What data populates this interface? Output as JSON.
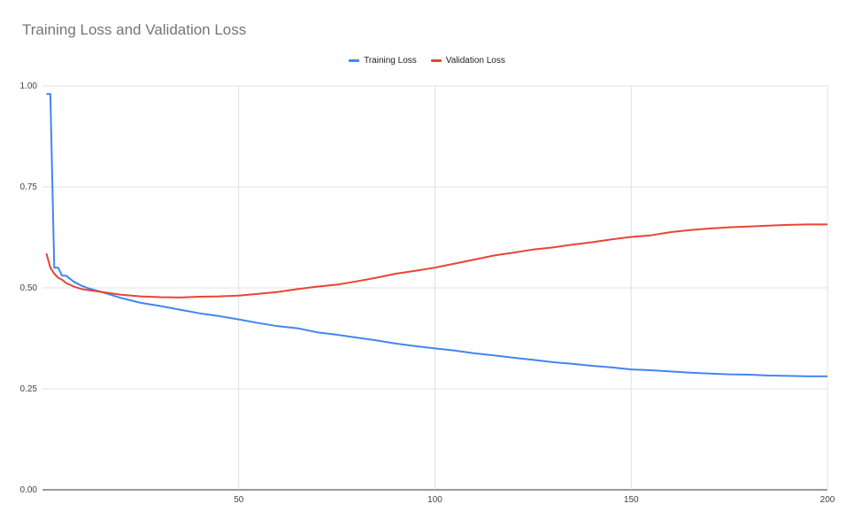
{
  "chart_data": {
    "type": "line",
    "title": "Training Loss and Validation Loss",
    "xlabel": "",
    "ylabel": "",
    "xlim": [
      0,
      200
    ],
    "ylim": [
      0,
      1
    ],
    "x_ticks": [
      50,
      100,
      150,
      200
    ],
    "y_ticks": [
      0,
      0.25,
      0.5,
      0.75,
      1
    ],
    "x_tick_labels": [
      "50",
      "100",
      "150",
      "200"
    ],
    "y_tick_labels": [
      "0.00",
      "0.25",
      "0.50",
      "0.75",
      "1.00"
    ],
    "grid": true,
    "legend_position": "top-center",
    "x": [
      1,
      2,
      3,
      4,
      5,
      6,
      8,
      10,
      12,
      15,
      20,
      25,
      30,
      35,
      40,
      45,
      50,
      55,
      60,
      65,
      70,
      75,
      80,
      85,
      90,
      95,
      100,
      105,
      110,
      115,
      120,
      125,
      130,
      135,
      140,
      145,
      150,
      155,
      160,
      165,
      170,
      175,
      180,
      185,
      190,
      195,
      200
    ],
    "series": [
      {
        "name": "Training Loss",
        "color": "#4285f4",
        "values": [
          0.98,
          0.98,
          0.55,
          0.55,
          0.53,
          0.53,
          0.515,
          0.505,
          0.498,
          0.49,
          0.475,
          0.463,
          0.455,
          0.446,
          0.437,
          0.43,
          0.422,
          0.413,
          0.405,
          0.4,
          0.39,
          0.384,
          0.377,
          0.37,
          0.362,
          0.356,
          0.35,
          0.345,
          0.338,
          0.333,
          0.327,
          0.322,
          0.316,
          0.312,
          0.307,
          0.303,
          0.298,
          0.296,
          0.293,
          0.29,
          0.288,
          0.286,
          0.285,
          0.283,
          0.282,
          0.281,
          0.281
        ]
      },
      {
        "name": "Validation Loss",
        "color": "#ea4335",
        "values": [
          0.585,
          0.55,
          0.535,
          0.525,
          0.52,
          0.512,
          0.503,
          0.497,
          0.494,
          0.49,
          0.483,
          0.479,
          0.477,
          0.476,
          0.478,
          0.479,
          0.481,
          0.485,
          0.49,
          0.497,
          0.503,
          0.508,
          0.516,
          0.525,
          0.535,
          0.542,
          0.55,
          0.56,
          0.57,
          0.58,
          0.587,
          0.595,
          0.6,
          0.607,
          0.613,
          0.62,
          0.626,
          0.63,
          0.638,
          0.643,
          0.647,
          0.65,
          0.652,
          0.654,
          0.656,
          0.657,
          0.657
        ]
      }
    ]
  }
}
